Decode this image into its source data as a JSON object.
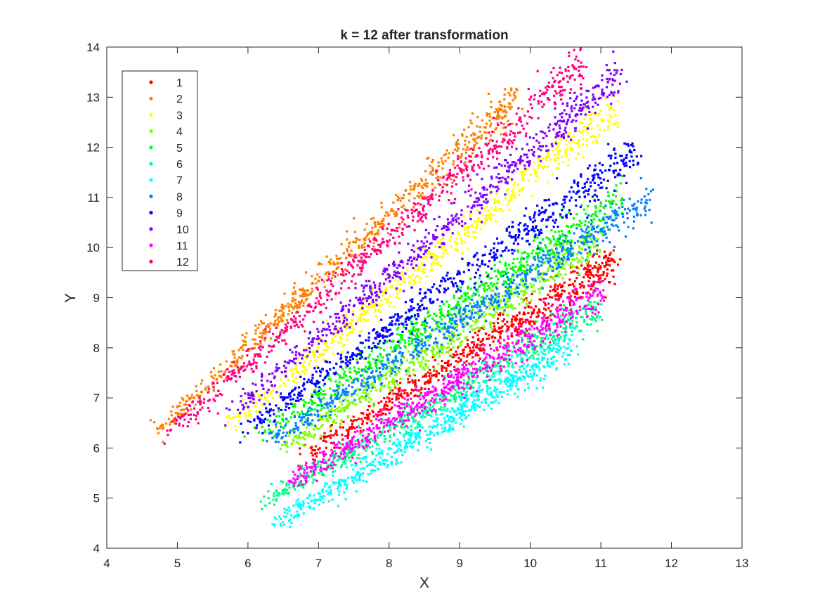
{
  "chart_data": {
    "type": "scatter",
    "title": "k = 12 after transformation",
    "xlabel": "X",
    "ylabel": "Y",
    "xlim": [
      4,
      13
    ],
    "ylim": [
      4,
      14
    ],
    "xticks": [
      "4",
      "5",
      "6",
      "7",
      "8",
      "9",
      "10",
      "11",
      "12",
      "13"
    ],
    "yticks": [
      "4",
      "5",
      "6",
      "7",
      "8",
      "9",
      "10",
      "11",
      "12",
      "13",
      "14"
    ],
    "grid": false,
    "legend_position": "top-left",
    "series": [
      {
        "name": "1",
        "color": "#ff0000",
        "x_range": [
          6.8,
          11.2
        ],
        "center_start": [
          6.8,
          5.85
        ],
        "center_end": [
          11.2,
          9.75
        ]
      },
      {
        "name": "2",
        "color": "#ff8000",
        "x_range": [
          4.65,
          9.8
        ],
        "center_start": [
          4.7,
          6.3
        ],
        "center_end": [
          9.8,
          13.0
        ]
      },
      {
        "name": "3",
        "color": "#ffff00",
        "x_range": [
          5.7,
          11.2
        ],
        "center_start": [
          5.7,
          6.4
        ],
        "center_end": [
          11.2,
          12.8
        ]
      },
      {
        "name": "4",
        "color": "#80ff00",
        "x_range": [
          6.1,
          11.5
        ],
        "center_start": [
          6.5,
          6.0
        ],
        "center_end": [
          11.0,
          10.2
        ]
      },
      {
        "name": "5",
        "color": "#00ff00",
        "x_range": [
          6.0,
          12.2
        ],
        "center_start": [
          6.1,
          6.2
        ],
        "center_end": [
          11.3,
          11.0
        ]
      },
      {
        "name": "6",
        "color": "#00ff80",
        "x_range": [
          6.1,
          11.5
        ],
        "center_start": [
          6.2,
          4.9
        ],
        "center_end": [
          11.0,
          8.8
        ]
      },
      {
        "name": "7",
        "color": "#00ffff",
        "x_range": [
          6.3,
          10.6
        ],
        "center_start": [
          6.4,
          4.5
        ],
        "center_end": [
          10.6,
          8.1
        ]
      },
      {
        "name": "8",
        "color": "#0080ff",
        "x_range": [
          6.2,
          11.7
        ],
        "center_start": [
          6.3,
          6.1
        ],
        "center_end": [
          11.7,
          11.0
        ]
      },
      {
        "name": "9",
        "color": "#0000ff",
        "x_range": [
          5.9,
          11.5
        ],
        "center_start": [
          5.9,
          6.3
        ],
        "center_end": [
          11.5,
          11.9
        ]
      },
      {
        "name": "10",
        "color": "#8000ff",
        "x_range": [
          5.8,
          11.3
        ],
        "center_start": [
          5.8,
          6.7
        ],
        "center_end": [
          11.3,
          13.5
        ]
      },
      {
        "name": "11",
        "color": "#ff00ff",
        "x_range": [
          6.5,
          11.5
        ],
        "center_start": [
          6.6,
          5.3
        ],
        "center_end": [
          11.0,
          9.1
        ]
      },
      {
        "name": "12",
        "color": "#ff0080",
        "x_range": [
          4.75,
          10.8
        ],
        "center_start": [
          4.8,
          6.2
        ],
        "center_end": [
          10.75,
          13.65
        ]
      }
    ]
  }
}
